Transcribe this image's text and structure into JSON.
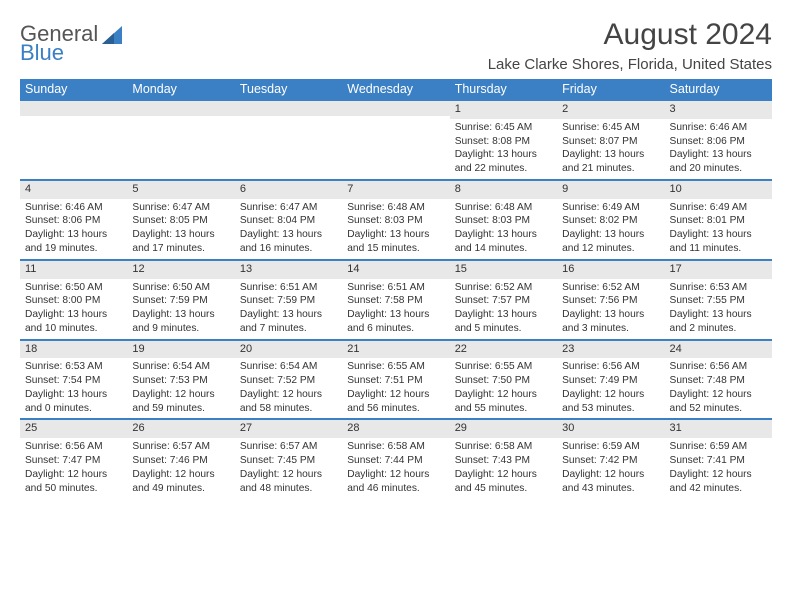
{
  "logo": {
    "line1": "General",
    "line2": "Blue"
  },
  "title": "August 2024",
  "subtitle": "Lake Clarke Shores, Florida, United States",
  "colors": {
    "header_bg": "#3b7fc4",
    "header_text": "#ffffff",
    "day_header_bg": "#e8e8e8",
    "week_border": "#3b7fc4",
    "text": "#333333",
    "background": "#ffffff"
  },
  "week_days": [
    "Sunday",
    "Monday",
    "Tuesday",
    "Wednesday",
    "Thursday",
    "Friday",
    "Saturday"
  ],
  "weeks": [
    [
      null,
      null,
      null,
      null,
      {
        "num": "1",
        "sunrise": "6:45 AM",
        "sunset": "8:08 PM",
        "dl_h": "13",
        "dl_m": "22"
      },
      {
        "num": "2",
        "sunrise": "6:45 AM",
        "sunset": "8:07 PM",
        "dl_h": "13",
        "dl_m": "21"
      },
      {
        "num": "3",
        "sunrise": "6:46 AM",
        "sunset": "8:06 PM",
        "dl_h": "13",
        "dl_m": "20"
      }
    ],
    [
      {
        "num": "4",
        "sunrise": "6:46 AM",
        "sunset": "8:06 PM",
        "dl_h": "13",
        "dl_m": "19"
      },
      {
        "num": "5",
        "sunrise": "6:47 AM",
        "sunset": "8:05 PM",
        "dl_h": "13",
        "dl_m": "17"
      },
      {
        "num": "6",
        "sunrise": "6:47 AM",
        "sunset": "8:04 PM",
        "dl_h": "13",
        "dl_m": "16"
      },
      {
        "num": "7",
        "sunrise": "6:48 AM",
        "sunset": "8:03 PM",
        "dl_h": "13",
        "dl_m": "15"
      },
      {
        "num": "8",
        "sunrise": "6:48 AM",
        "sunset": "8:03 PM",
        "dl_h": "13",
        "dl_m": "14"
      },
      {
        "num": "9",
        "sunrise": "6:49 AM",
        "sunset": "8:02 PM",
        "dl_h": "13",
        "dl_m": "12"
      },
      {
        "num": "10",
        "sunrise": "6:49 AM",
        "sunset": "8:01 PM",
        "dl_h": "13",
        "dl_m": "11"
      }
    ],
    [
      {
        "num": "11",
        "sunrise": "6:50 AM",
        "sunset": "8:00 PM",
        "dl_h": "13",
        "dl_m": "10"
      },
      {
        "num": "12",
        "sunrise": "6:50 AM",
        "sunset": "7:59 PM",
        "dl_h": "13",
        "dl_m": "9"
      },
      {
        "num": "13",
        "sunrise": "6:51 AM",
        "sunset": "7:59 PM",
        "dl_h": "13",
        "dl_m": "7"
      },
      {
        "num": "14",
        "sunrise": "6:51 AM",
        "sunset": "7:58 PM",
        "dl_h": "13",
        "dl_m": "6"
      },
      {
        "num": "15",
        "sunrise": "6:52 AM",
        "sunset": "7:57 PM",
        "dl_h": "13",
        "dl_m": "5"
      },
      {
        "num": "16",
        "sunrise": "6:52 AM",
        "sunset": "7:56 PM",
        "dl_h": "13",
        "dl_m": "3"
      },
      {
        "num": "17",
        "sunrise": "6:53 AM",
        "sunset": "7:55 PM",
        "dl_h": "13",
        "dl_m": "2"
      }
    ],
    [
      {
        "num": "18",
        "sunrise": "6:53 AM",
        "sunset": "7:54 PM",
        "dl_h": "13",
        "dl_m": "0"
      },
      {
        "num": "19",
        "sunrise": "6:54 AM",
        "sunset": "7:53 PM",
        "dl_h": "12",
        "dl_m": "59"
      },
      {
        "num": "20",
        "sunrise": "6:54 AM",
        "sunset": "7:52 PM",
        "dl_h": "12",
        "dl_m": "58"
      },
      {
        "num": "21",
        "sunrise": "6:55 AM",
        "sunset": "7:51 PM",
        "dl_h": "12",
        "dl_m": "56"
      },
      {
        "num": "22",
        "sunrise": "6:55 AM",
        "sunset": "7:50 PM",
        "dl_h": "12",
        "dl_m": "55"
      },
      {
        "num": "23",
        "sunrise": "6:56 AM",
        "sunset": "7:49 PM",
        "dl_h": "12",
        "dl_m": "53"
      },
      {
        "num": "24",
        "sunrise": "6:56 AM",
        "sunset": "7:48 PM",
        "dl_h": "12",
        "dl_m": "52"
      }
    ],
    [
      {
        "num": "25",
        "sunrise": "6:56 AM",
        "sunset": "7:47 PM",
        "dl_h": "12",
        "dl_m": "50"
      },
      {
        "num": "26",
        "sunrise": "6:57 AM",
        "sunset": "7:46 PM",
        "dl_h": "12",
        "dl_m": "49"
      },
      {
        "num": "27",
        "sunrise": "6:57 AM",
        "sunset": "7:45 PM",
        "dl_h": "12",
        "dl_m": "48"
      },
      {
        "num": "28",
        "sunrise": "6:58 AM",
        "sunset": "7:44 PM",
        "dl_h": "12",
        "dl_m": "46"
      },
      {
        "num": "29",
        "sunrise": "6:58 AM",
        "sunset": "7:43 PM",
        "dl_h": "12",
        "dl_m": "45"
      },
      {
        "num": "30",
        "sunrise": "6:59 AM",
        "sunset": "7:42 PM",
        "dl_h": "12",
        "dl_m": "43"
      },
      {
        "num": "31",
        "sunrise": "6:59 AM",
        "sunset": "7:41 PM",
        "dl_h": "12",
        "dl_m": "42"
      }
    ]
  ]
}
